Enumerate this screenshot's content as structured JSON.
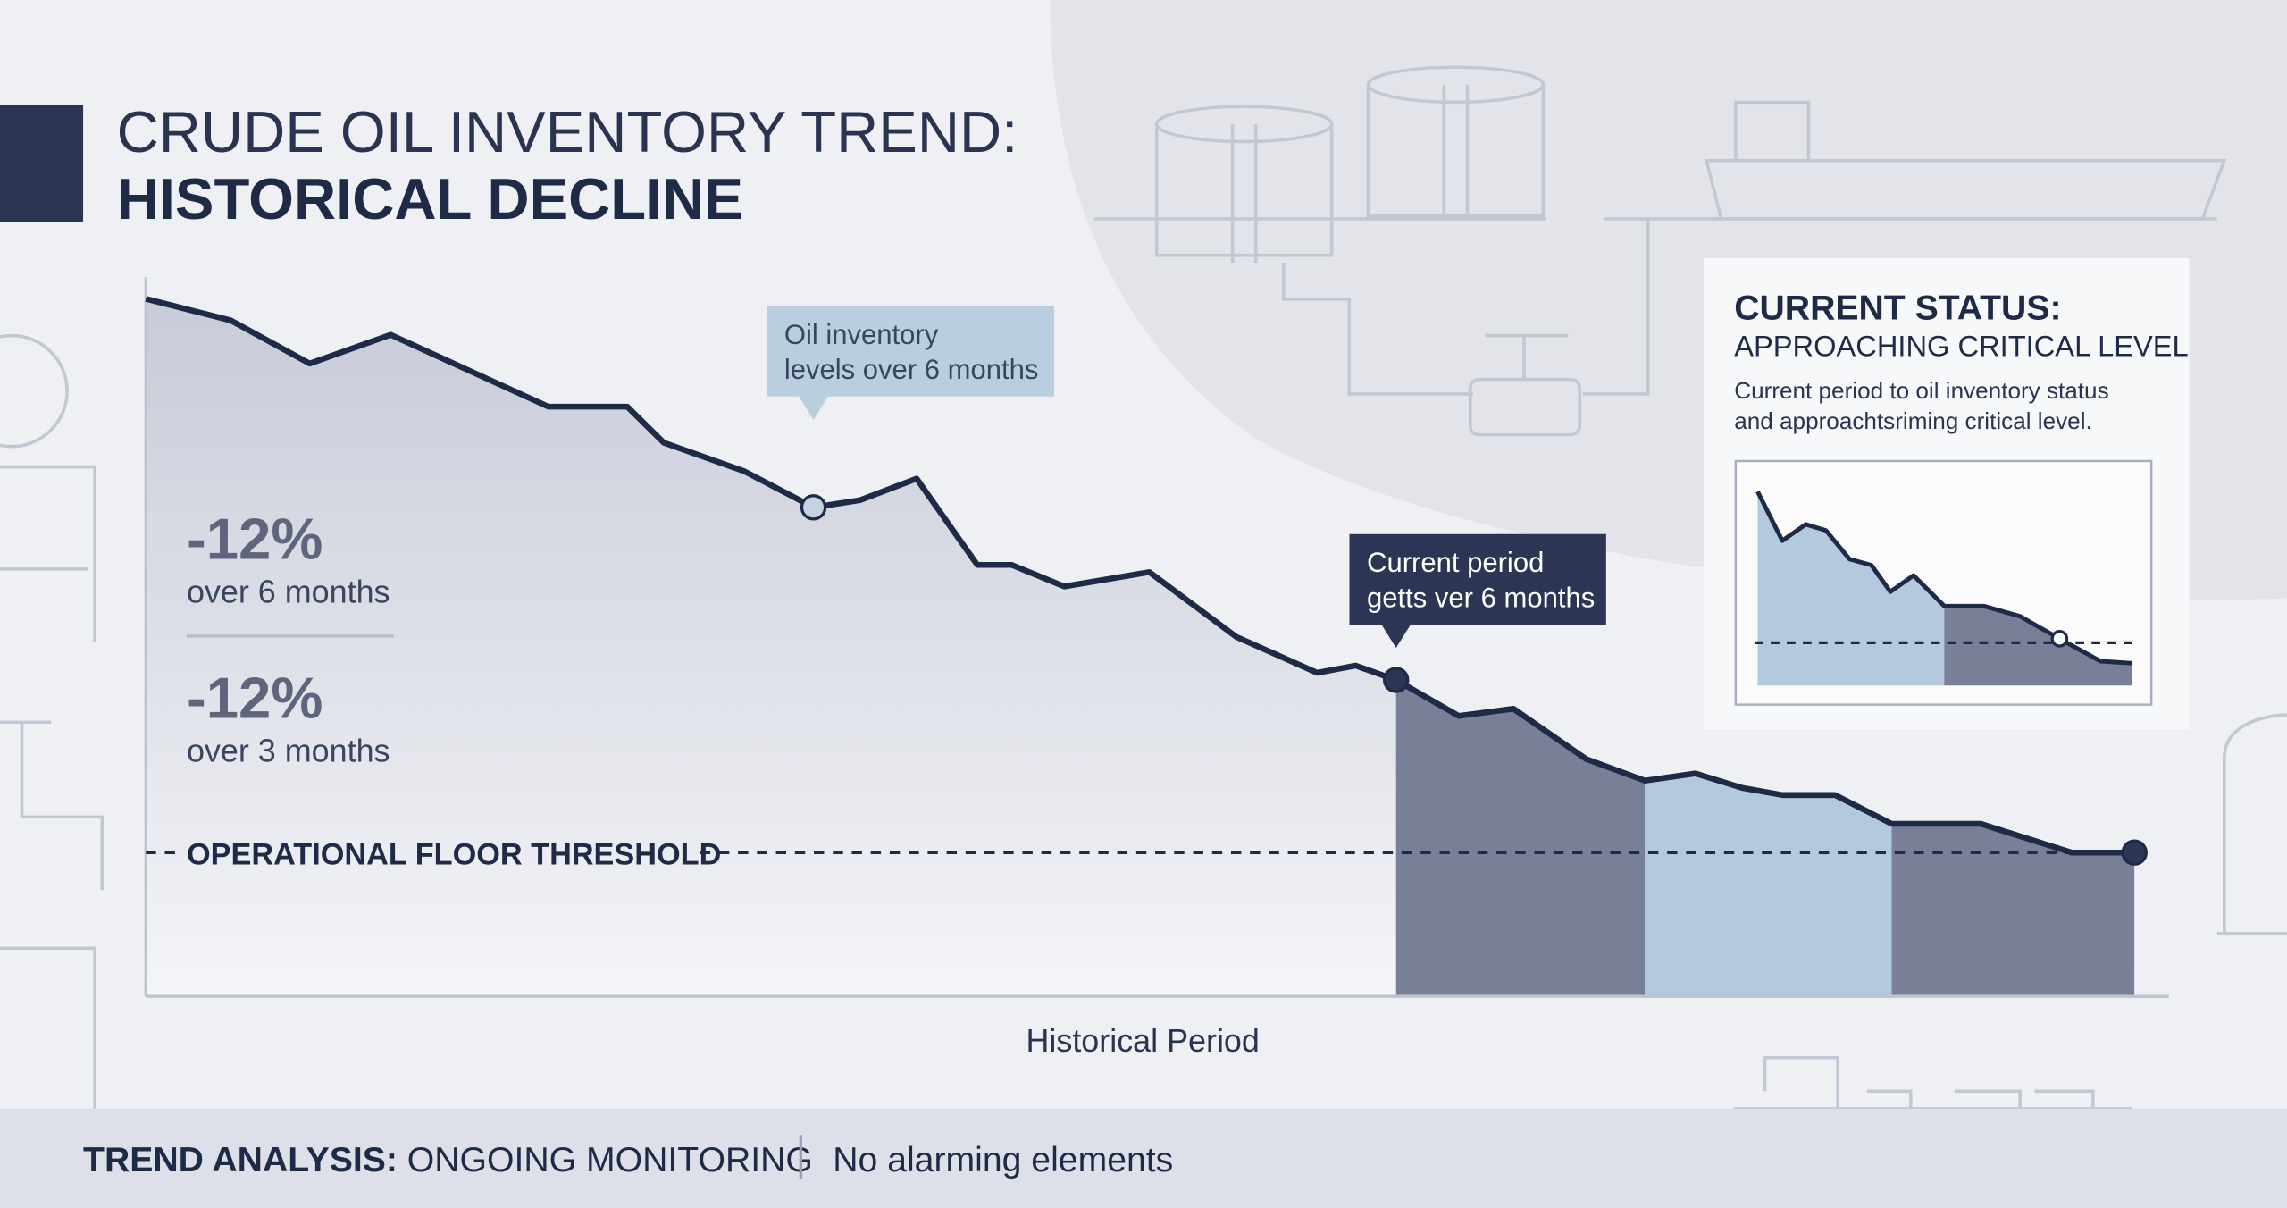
{
  "header": {
    "title_line1": "CRUDE OIL INVENTORY TREND:",
    "title_line2": "HISTORICAL DECLINE"
  },
  "stats": [
    {
      "value": "-12%",
      "label": "over 6 months"
    },
    {
      "value": "-12%",
      "label": "over 3 months"
    }
  ],
  "status": {
    "title": "CURRENT STATUS:",
    "subtitle": "APPROACHING CRITICAL LEVEL",
    "body": [
      "Current period to oil inventory status",
      "and approachtsriming critical level."
    ]
  },
  "footer": {
    "label": "TREND ANALYSIS:",
    "status": " ONGOING MONITORING",
    "note": "No alarming elements"
  },
  "chart_data": [
    {
      "type": "line",
      "xlabel": "Historical Period",
      "color": "#1f2a47",
      "x": [
        0,
        4.2,
        8.1,
        12.1,
        16.0,
        19.9,
        23.8,
        25.6,
        29.6,
        33.0,
        35.3,
        38.1,
        41.1,
        42.8,
        45.4,
        49.6,
        53.9,
        57.9,
        59.8,
        61.8,
        64.9,
        67.6,
        71.2,
        74.1,
        76.6,
        78.9,
        80.9,
        83.5,
        86.3,
        90.7,
        95.2,
        98.3
      ],
      "values": [
        97,
        94,
        88,
        92,
        87,
        82,
        82,
        77,
        73,
        68,
        69,
        72,
        60,
        60,
        57,
        59,
        50,
        45,
        46,
        44,
        39,
        40,
        33,
        30,
        31,
        29,
        28,
        28,
        24,
        24,
        20,
        20
      ],
      "xlim": [
        0,
        100
      ],
      "ylim": [
        0,
        100
      ],
      "threshold": {
        "value": 20,
        "label": "OPERATIONAL FLOOR THRESHOLD"
      },
      "regions": [
        {
          "from": 61.8,
          "to": 74.1,
          "color": "#7a7f98"
        },
        {
          "from": 74.1,
          "to": 86.3,
          "color": "#b3cade"
        },
        {
          "from": 86.3,
          "to": 98.3,
          "color": "#7a7f98"
        }
      ],
      "points": [
        {
          "x": 33.0,
          "value": 68,
          "color": "#c5d3e0"
        },
        {
          "x": 61.8,
          "value": 44,
          "color": "#2c3654"
        },
        {
          "x": 98.3,
          "value": 20,
          "color": "#2c3654"
        }
      ],
      "annotations": [
        {
          "x": 33.0,
          "value": 68,
          "lines": [
            "Oil inventory",
            "levels over 6 months"
          ],
          "style": "light"
        },
        {
          "x": 61.8,
          "value": 44,
          "lines": [
            "Current period",
            "getts ver 6 months"
          ],
          "style": "dark"
        }
      ]
    },
    {
      "type": "line",
      "color": "#1f2a47",
      "x": [
        0.8,
        7.3,
        13.5,
        18.8,
        25,
        30.8,
        35.8,
        41.9,
        50,
        60.4,
        70,
        80.4,
        91.2,
        99.6
      ],
      "values": [
        95,
        71,
        79,
        76,
        62,
        59,
        46,
        54,
        39,
        39,
        34,
        23,
        12,
        11
      ],
      "xlim": [
        0,
        100
      ],
      "ylim": [
        0,
        100
      ],
      "threshold": {
        "value": 21
      },
      "regions": [
        {
          "from": 0.8,
          "to": 50,
          "color": "#b3cade"
        },
        {
          "from": 50,
          "to": 99.6,
          "color": "#7a7f98"
        }
      ],
      "points": [
        {
          "x": 80.4,
          "value": 23,
          "color": "#ffffff"
        }
      ]
    }
  ]
}
